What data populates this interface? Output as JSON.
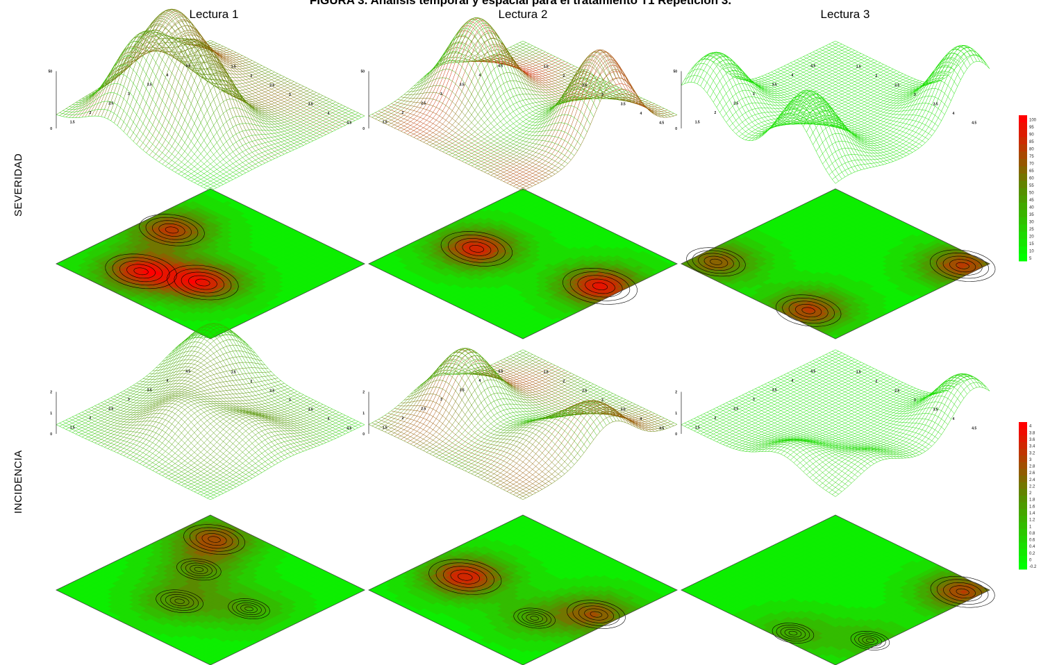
{
  "figure": {
    "title": "FIGURA 3. Análisis temporal y espacial para el tratamiento T1 Repetición 3.",
    "columns": [
      "Lectura 1",
      "Lectura 2",
      "Lectura 3"
    ],
    "rows": [
      "SEVERIDAD",
      "INCIDENCIA"
    ]
  },
  "colors": {
    "low": "#00ff00",
    "mid": "#5a8a00",
    "high": "#ff0000",
    "contour": "#000000"
  },
  "chart_data": [
    {
      "type": "heatmap",
      "variable": "SEVERIDAD",
      "views": [
        "3d-wireframe-surface",
        "contour-map"
      ],
      "panels": [
        "Lectura 1",
        "Lectura 2",
        "Lectura 3"
      ],
      "colorbar": {
        "min": 5,
        "max": 100,
        "ticks": [
          "100",
          "95",
          "90",
          "85",
          "80",
          "75",
          "70",
          "65",
          "60",
          "55",
          "50",
          "45",
          "40",
          "35",
          "30",
          "25",
          "20",
          "15",
          "10",
          "5"
        ]
      },
      "z_axis_ticks": [
        "0",
        "50"
      ],
      "grid_axis_ticks": [
        "1.5",
        "2",
        "2.5",
        "3",
        "3.5",
        "4",
        "4.5"
      ],
      "hotspots": [
        {
          "panel": "Lectura 1",
          "x": 2.3,
          "y": 4.1,
          "value": 80
        },
        {
          "panel": "Lectura 1",
          "x": 3.4,
          "y": 3.6,
          "value": 80
        },
        {
          "panel": "Lectura 1",
          "x": 1.6,
          "y": 2.6,
          "value": 70
        },
        {
          "panel": "Lectura 2",
          "x": 2.0,
          "y": 3.2,
          "value": 80
        },
        {
          "panel": "Lectura 2",
          "x": 4.6,
          "y": 2.6,
          "value": 85
        },
        {
          "panel": "Lectura 3",
          "x": 3.9,
          "y": 4.6,
          "value": 70
        },
        {
          "panel": "Lectura 3",
          "x": 1.4,
          "y": 4.5,
          "value": 60
        },
        {
          "panel": "Lectura 3",
          "x": 4.7,
          "y": 1.4,
          "value": 70
        }
      ]
    },
    {
      "type": "heatmap",
      "variable": "INCIDENCIA",
      "views": [
        "3d-wireframe-surface",
        "contour-map"
      ],
      "panels": [
        "Lectura 1",
        "Lectura 2",
        "Lectura 3"
      ],
      "colorbar": {
        "min": -0.2,
        "max": 4,
        "ticks": [
          "4",
          "3.8",
          "3.6",
          "3.4",
          "3.2",
          "3",
          "2.8",
          "2.6",
          "2.4",
          "2.2",
          "2",
          "1.8",
          "1.6",
          "1.4",
          "1.2",
          "1",
          "0.8",
          "0.6",
          "0.4",
          "0.2",
          "0",
          "-0.2"
        ]
      },
      "z_axis_ticks": [
        "0",
        "1",
        "2"
      ],
      "grid_axis_ticks": [
        "1.5",
        "2",
        "2.5",
        "3",
        "3.5",
        "4",
        "4.5"
      ],
      "hotspots": [
        {
          "panel": "Lectura 1",
          "x": 1.7,
          "y": 1.6,
          "value": 2.4
        },
        {
          "panel": "Lectura 1",
          "x": 2.9,
          "y": 3.7,
          "value": 1.4
        },
        {
          "panel": "Lectura 1",
          "x": 2.3,
          "y": 2.6,
          "value": 1.2
        },
        {
          "panel": "Lectura 1",
          "x": 4.0,
          "y": 3.0,
          "value": 1.0
        },
        {
          "panel": "Lectura 2",
          "x": 1.9,
          "y": 3.4,
          "value": 3.2
        },
        {
          "panel": "Lectura 2",
          "x": 4.6,
          "y": 2.7,
          "value": 2.2
        },
        {
          "panel": "Lectura 2",
          "x": 3.9,
          "y": 3.6,
          "value": 1.0
        },
        {
          "panel": "Lectura 3",
          "x": 4.7,
          "y": 1.4,
          "value": 2.6
        },
        {
          "panel": "Lectura 3",
          "x": 3.6,
          "y": 4.7,
          "value": 1.0
        },
        {
          "panel": "Lectura 3",
          "x": 4.8,
          "y": 3.9,
          "value": 0.8
        }
      ]
    }
  ]
}
